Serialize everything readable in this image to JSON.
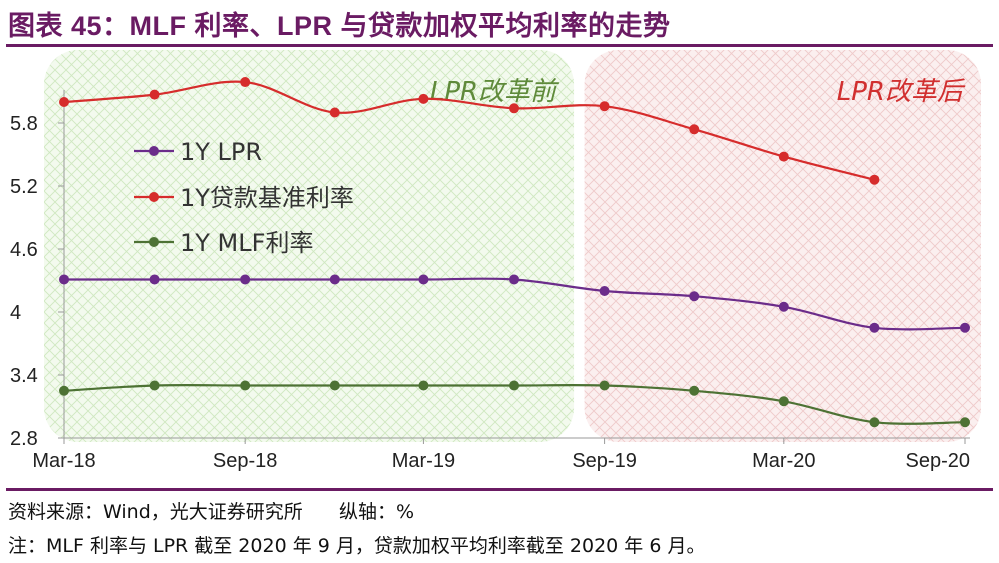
{
  "figure": {
    "title": "图表 45：MLF 利率、LPR 与贷款加权平均利率的走势",
    "source": "资料来源：Wind，光大证券研究所      纵轴：%",
    "note": "注：MLF 利率与 LPR 截至 2020 年 9 月，贷款加权平均利率截至 2020 年 6 月。"
  },
  "chart_data": {
    "type": "line",
    "title": "",
    "xlabel": "",
    "ylabel": "",
    "ylim": [
      2.8,
      6.4
    ],
    "yticks": [
      2.8,
      3.4,
      4,
      4.6,
      5.2,
      5.8
    ],
    "ytick_labels": [
      "2.8",
      "3.4",
      "4",
      "4.6",
      "5.2",
      "5.8"
    ],
    "xticks": [
      "Mar-18",
      "Sep-18",
      "Mar-19",
      "Sep-19",
      "Mar-20",
      "Sep-20"
    ],
    "grid": false,
    "legend_position": "upper-left",
    "x": [
      "2018-03",
      "2018-06",
      "2018-09",
      "2018-12",
      "2019-03",
      "2019-06",
      "2019-09",
      "2019-12",
      "2020-03",
      "2020-06",
      "2020-09"
    ],
    "series": [
      {
        "name": "1Y LPR",
        "color": "#6b2c8a",
        "values": [
          4.31,
          4.31,
          4.31,
          4.31,
          4.31,
          4.31,
          4.2,
          4.15,
          4.05,
          3.85,
          3.85
        ]
      },
      {
        "name": "1Y贷款基准利率",
        "color": "#d62c2c",
        "values": [
          6.0,
          6.07,
          6.19,
          5.9,
          6.03,
          5.94,
          5.96,
          5.74,
          5.48,
          5.26,
          null
        ]
      },
      {
        "name": "1Y MLF利率",
        "color": "#4d7234",
        "values": [
          3.25,
          3.3,
          3.3,
          3.3,
          3.3,
          3.3,
          3.3,
          3.25,
          3.15,
          2.95,
          2.95
        ]
      }
    ],
    "regions": [
      {
        "label": "LPR改革前",
        "from": "2018-03",
        "to": "2019-08",
        "color": "#6fbf4a",
        "label_color": "#5f8a3a"
      },
      {
        "label": "LPR改革后",
        "from": "2019-09",
        "to": "2020-09",
        "color": "#e79090",
        "label_color": "#d12f2f"
      }
    ]
  }
}
